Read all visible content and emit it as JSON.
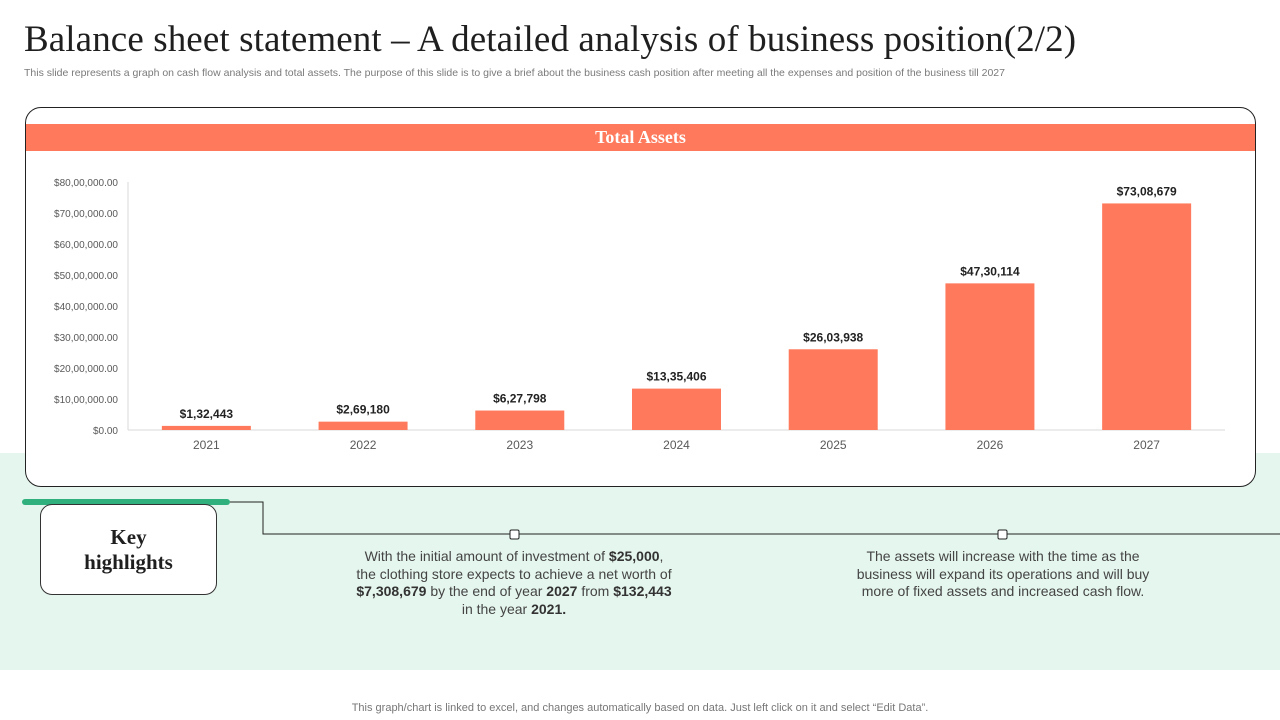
{
  "page": {
    "title": "Balance sheet statement – A detailed analysis of business position(2/2)",
    "subtitle": "This slide represents a graph on cash flow analysis and total assets. The purpose of this slide is to give a brief about the business cash position after meeting all the expenses and position of the business till 2027",
    "footer": "This graph/chart is linked to excel, and changes automatically based on data. Just left click on it and select “Edit Data”."
  },
  "colors": {
    "accent": "#ff7a5c",
    "green": "#2fb07c",
    "mint": "#e5f6ee"
  },
  "chart_data": {
    "type": "bar",
    "title": "Total Assets",
    "categories": [
      "2021",
      "2022",
      "2023",
      "2024",
      "2025",
      "2026",
      "2027"
    ],
    "values": [
      132443,
      269180,
      627798,
      1335406,
      2603938,
      4730114,
      7308679
    ],
    "data_labels": [
      "$1,32,443",
      "$2,69,180",
      "$6,27,798",
      "$13,35,406",
      "$26,03,938",
      "$47,30,114",
      "$73,08,679"
    ],
    "y_ticks": [
      0,
      1000000,
      2000000,
      3000000,
      4000000,
      5000000,
      6000000,
      7000000,
      8000000
    ],
    "y_tick_labels": [
      "$0.00",
      "$10,00,000.00",
      "$20,00,000.00",
      "$30,00,000.00",
      "$40,00,000.00",
      "$50,00,000.00",
      "$60,00,000.00",
      "$70,00,000.00",
      "$80,00,000.00"
    ],
    "ylim": [
      0,
      8000000
    ],
    "xlabel": "",
    "ylabel": "",
    "grid": false,
    "bar_color": "#ff7a5c"
  },
  "highlights": {
    "heading_line1": "Key",
    "heading_line2": "highlights",
    "point1": {
      "t1": "With the initial amount of investment of ",
      "b1": "$25,000",
      "t2": ", the clothing store expects to achieve a net worth of ",
      "b2": "$7,308,679",
      "t3": " by the end of year ",
      "b3": "2027",
      "t4": " from ",
      "b4": "$132,443",
      "t5": " in the year ",
      "b5": "2021."
    },
    "point2": "The assets will increase with the time as the business will expand its operations and will buy more of fixed assets and increased cash flow."
  }
}
